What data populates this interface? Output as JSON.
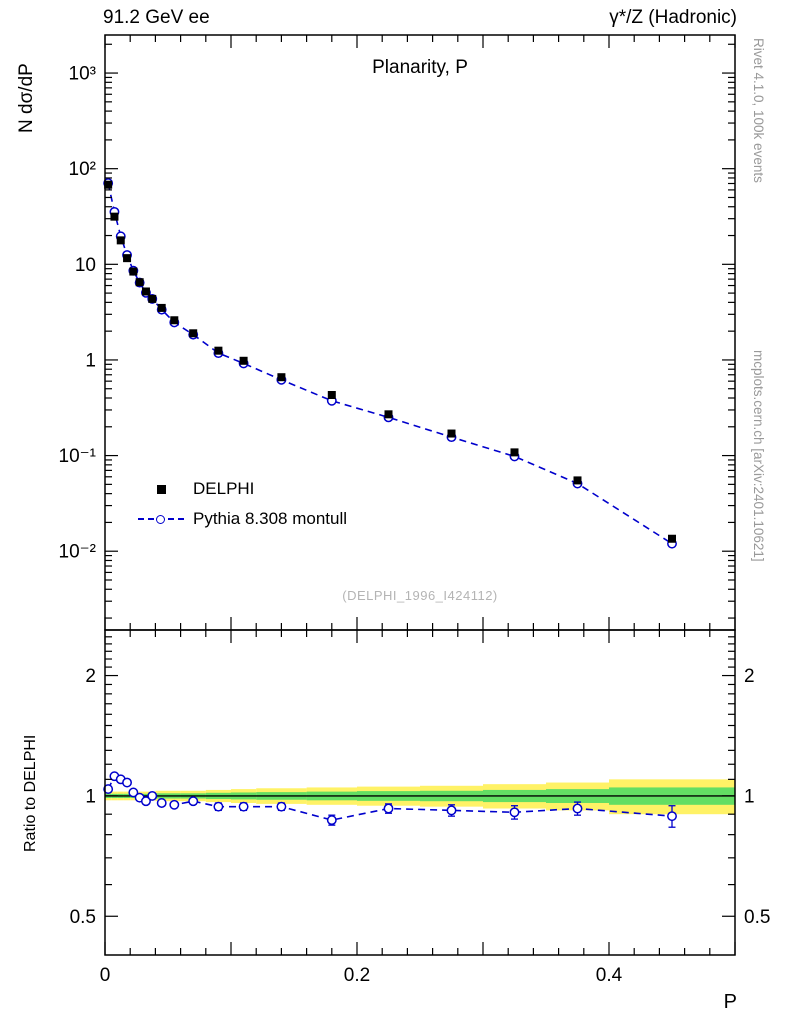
{
  "header": {
    "left": "91.2 GeV ee",
    "right": "γ*/Z (Hadronic)"
  },
  "title": "Planarity, P",
  "watermark": "(DELPHI_1996_I424112)",
  "side_notes": {
    "top_right": "Rivet 4.1.0, 100k events",
    "bottom_right": "mcplots.cern.ch [arXiv:2401.10621]"
  },
  "colors": {
    "mc_blue": "#0000cc",
    "data_black": "#000000",
    "band_yellow": "#fff266",
    "band_green": "#63de63",
    "note_gray": "#999999",
    "watermark_gray": "#b4b4b4"
  },
  "legend": [
    {
      "label": "DELPHI",
      "marker": "filled-square",
      "color": "#000000"
    },
    {
      "label": "Pythia 8.308 montull",
      "marker": "open-circle-dashed-line",
      "color": "#0000cc"
    }
  ],
  "axes": {
    "x": {
      "label": "P",
      "min": 0,
      "max": 0.5,
      "major": [
        0,
        0.1,
        0.2,
        0.3,
        0.4,
        0.5
      ],
      "minor_step": 0.02,
      "ticks": [
        {
          "v": 0,
          "label": "0"
        },
        {
          "v": 0.2,
          "label": "0.2"
        },
        {
          "v": 0.4,
          "label": "0.4"
        }
      ]
    },
    "y_main": {
      "label": "N dσ/dP",
      "scale": "log",
      "min": 0.0015,
      "max": 2500,
      "ticks": [
        {
          "v": 0.01,
          "label": "10⁻²"
        },
        {
          "v": 0.1,
          "label": "10⁻¹"
        },
        {
          "v": 1,
          "label": "1"
        },
        {
          "v": 10,
          "label": "10"
        },
        {
          "v": 100,
          "label": "10²"
        },
        {
          "v": 1000,
          "label": "10³"
        }
      ]
    },
    "y_ratio": {
      "label": "Ratio to DELPHI",
      "scale": "log",
      "min": 0.4,
      "max": 2.6,
      "ticks": [
        {
          "v": 0.5,
          "label": "0.5"
        },
        {
          "v": 1,
          "label": "1"
        },
        {
          "v": 2,
          "label": "2"
        }
      ]
    }
  },
  "chart_data": [
    {
      "type": "scatter",
      "title": "Planarity, P",
      "xlabel": "P",
      "ylabel": "N dσ/dP",
      "xscale": "linear",
      "yscale": "log",
      "xlim": [
        0,
        0.5
      ],
      "ylim": [
        0.0015,
        2500
      ],
      "grid": false,
      "legend_position": "center-left",
      "x": [
        0.0025,
        0.0075,
        0.0125,
        0.0175,
        0.0225,
        0.0275,
        0.0325,
        0.0375,
        0.045,
        0.055,
        0.07,
        0.09,
        0.11,
        0.14,
        0.18,
        0.225,
        0.275,
        0.325,
        0.375,
        0.45
      ],
      "bin_edges": [
        0,
        0.005,
        0.01,
        0.015,
        0.02,
        0.025,
        0.03,
        0.035,
        0.04,
        0.05,
        0.06,
        0.08,
        0.1,
        0.12,
        0.16,
        0.2,
        0.25,
        0.3,
        0.35,
        0.4,
        0.5
      ],
      "series": [
        {
          "name": "DELPHI",
          "marker": "filled-square",
          "color": "#000000",
          "values": [
            68,
            31.5,
            17.8,
            11.6,
            8.4,
            6.5,
            5.2,
            4.35,
            3.5,
            2.6,
            1.9,
            1.25,
            0.98,
            0.66,
            0.43,
            0.27,
            0.17,
            0.108,
            0.055,
            0.0135
          ]
        },
        {
          "name": "Pythia 8.308 montull",
          "marker": "open-circle",
          "line": "dashed",
          "color": "#0000cc",
          "values": [
            70.7,
            35.3,
            19.6,
            12.5,
            8.57,
            6.44,
            5.04,
            4.35,
            3.36,
            2.47,
            1.84,
            1.18,
            0.92,
            0.62,
            0.374,
            0.251,
            0.156,
            0.098,
            0.051,
            0.012
          ]
        }
      ]
    },
    {
      "type": "line",
      "ylabel": "Ratio to DELPHI",
      "yscale": "log",
      "xlim": [
        0,
        0.5
      ],
      "ylim": [
        0.4,
        2.6
      ],
      "reference_line": 1,
      "x": [
        0.0025,
        0.0075,
        0.0125,
        0.0175,
        0.0225,
        0.0275,
        0.0325,
        0.0375,
        0.045,
        0.055,
        0.07,
        0.09,
        0.11,
        0.14,
        0.18,
        0.225,
        0.275,
        0.325,
        0.375,
        0.45
      ],
      "band_edges": [
        0,
        0.005,
        0.01,
        0.015,
        0.02,
        0.025,
        0.03,
        0.035,
        0.04,
        0.05,
        0.06,
        0.08,
        0.1,
        0.12,
        0.16,
        0.2,
        0.25,
        0.3,
        0.35,
        0.4,
        0.5
      ],
      "series": [
        {
          "name": "Pythia 8.308 montull / DELPHI",
          "color": "#0000cc",
          "line": "dashed",
          "marker": "open-circle",
          "values": [
            1.04,
            1.12,
            1.1,
            1.08,
            1.02,
            0.99,
            0.97,
            1.0,
            0.96,
            0.95,
            0.97,
            0.94,
            0.94,
            0.94,
            0.87,
            0.93,
            0.92,
            0.91,
            0.93,
            0.89
          ],
          "errors": [
            0.015,
            0.015,
            0.015,
            0.015,
            0.015,
            0.015,
            0.015,
            0.015,
            0.015,
            0.015,
            0.015,
            0.02,
            0.02,
            0.02,
            0.025,
            0.025,
            0.03,
            0.035,
            0.035,
            0.055
          ]
        }
      ],
      "bands": {
        "reference": 1,
        "yellow_halfwidth": [
          0.025,
          0.025,
          0.025,
          0.025,
          0.025,
          0.025,
          0.025,
          0.025,
          0.03,
          0.03,
          0.03,
          0.035,
          0.04,
          0.045,
          0.05,
          0.055,
          0.06,
          0.07,
          0.08,
          0.1
        ],
        "green_halfwidth": [
          0.012,
          0.012,
          0.012,
          0.012,
          0.012,
          0.012,
          0.012,
          0.012,
          0.015,
          0.015,
          0.015,
          0.018,
          0.02,
          0.022,
          0.025,
          0.028,
          0.03,
          0.035,
          0.04,
          0.05
        ]
      }
    }
  ]
}
